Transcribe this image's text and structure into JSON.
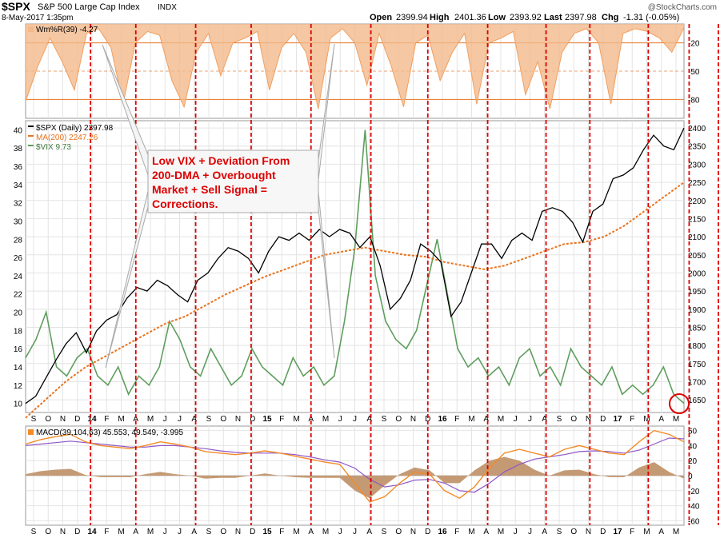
{
  "header": {
    "symbol": "$SPX",
    "name": "S&P 500 Large Cap Index",
    "exchange": "INDX",
    "date_time": "8-May-2017 1:35pm",
    "open_label": "Open",
    "open_value": "2399.94",
    "high_label": "High",
    "high_value": "2401.36",
    "low_label": "Low",
    "low_value": "2393.92",
    "last_label": "Last",
    "last_value": "2397.98",
    "chg_label": "Chg",
    "chg_value": "-1.31 (-0.05%)",
    "watermark": "@StockCharts.com"
  },
  "colors": {
    "spx": "#000000",
    "ma": "#e8731e",
    "vix": "#5e9e5e",
    "wm_fill": "#f3b98b",
    "wm_line": "#f0a060",
    "macd_line": "#f28c28",
    "signal_line": "#8f56c8",
    "hist": "#c49a74",
    "signal_vlines": "#dd0000",
    "annotation": "#dd0000",
    "grid": "#e4e4e4"
  },
  "annotation": {
    "lines": [
      "Low VIX + Deviation From",
      "200-DMA + Overbought",
      "Market + Sell Signal =",
      "Corrections."
    ]
  },
  "chart_data": [
    {
      "type": "line",
      "panel": "williams-percent-r",
      "legend": "Wm%R(39) -4.27",
      "y_ticks": [
        -20,
        -50,
        -80
      ],
      "ylim": [
        -100,
        0
      ],
      "values": [
        -82,
        -45,
        -15,
        -40,
        -70,
        -10,
        -5,
        -25,
        -85,
        -20,
        -8,
        -12,
        -60,
        -88,
        -30,
        -10,
        -55,
        -20,
        -15,
        -8,
        -70,
        -25,
        -10,
        -30,
        -90,
        -15,
        -5,
        -20,
        -65,
        -10,
        -45,
        -88,
        -20,
        -12,
        -60,
        -30,
        -10,
        -85,
        -20,
        -15,
        -8,
        -75,
        -40,
        -90,
        -30,
        -10,
        -5,
        -20,
        -85,
        -10,
        -5,
        -8,
        -15,
        -30,
        -4
      ]
    },
    {
      "type": "line",
      "panel": "price",
      "x_tick_labels": [
        "S",
        "O",
        "N",
        "D",
        "14",
        "F",
        "M",
        "A",
        "M",
        "J",
        "J",
        "A",
        "S",
        "O",
        "N",
        "D",
        "15",
        "F",
        "M",
        "A",
        "M",
        "J",
        "J",
        "A",
        "S",
        "O",
        "N",
        "D",
        "16",
        "F",
        "M",
        "A",
        "M",
        "J",
        "J",
        "A",
        "S",
        "O",
        "N",
        "D",
        "17",
        "F",
        "M",
        "A",
        "M"
      ],
      "right_axis_ticks": [
        2400,
        2350,
        2300,
        2250,
        2200,
        2150,
        2100,
        2050,
        2000,
        1950,
        1900,
        1850,
        1800,
        1750,
        1700,
        1650
      ],
      "left_axis_ticks": [
        40,
        38,
        36,
        34,
        32,
        30,
        28,
        26,
        24,
        22,
        20,
        18,
        16,
        14,
        12,
        10
      ],
      "series": [
        {
          "name": "$SPX (Daily) 2397.98",
          "axis": "right",
          "values": [
            1640,
            1660,
            1710,
            1760,
            1805,
            1835,
            1780,
            1840,
            1870,
            1885,
            1930,
            1960,
            1950,
            1980,
            1965,
            1940,
            1920,
            1980,
            2000,
            2040,
            2070,
            2060,
            2040,
            2000,
            2060,
            2100,
            2090,
            2110,
            2090,
            2120,
            2100,
            2120,
            2110,
            2070,
            2100,
            2020,
            1900,
            1930,
            1980,
            2080,
            2060,
            2030,
            1880,
            1920,
            2000,
            2080,
            2080,
            2040,
            2090,
            2110,
            2090,
            2170,
            2180,
            2170,
            2140,
            2085,
            2170,
            2190,
            2260,
            2270,
            2290,
            2340,
            2380,
            2350,
            2340,
            2400
          ]
        },
        {
          "name": "MA(200) 2247.26",
          "axis": "right",
          "values": [
            1600,
            1650,
            1700,
            1740,
            1770,
            1800,
            1830,
            1860,
            1880,
            1910,
            1940,
            1965,
            1990,
            2010,
            2030,
            2050,
            2060,
            2070,
            2060,
            2050,
            2045,
            2030,
            2020,
            2010,
            2020,
            2040,
            2060,
            2080,
            2085,
            2100,
            2130,
            2170,
            2210,
            2250
          ]
        },
        {
          "name": "$VIX 9.73",
          "axis": "left",
          "values": [
            15,
            17,
            20,
            14,
            13,
            15,
            16,
            13,
            12,
            14,
            11,
            13,
            12,
            14,
            19,
            17,
            14,
            13,
            16,
            14,
            12,
            13,
            16,
            14,
            13,
            12,
            15,
            13,
            14,
            12,
            13,
            19,
            27,
            40,
            24,
            19,
            17,
            16,
            18,
            23,
            28,
            22,
            16,
            14,
            15,
            13,
            14,
            12,
            15,
            16,
            13,
            14,
            12,
            16,
            14,
            13,
            12,
            14,
            11,
            12,
            11,
            12,
            14,
            11,
            10
          ]
        }
      ],
      "signal_lines_month_index": [
        3.9,
        7.0,
        11.1,
        14.9,
        19.0,
        23.1,
        27.0,
        31.1,
        35.1,
        38.1,
        42.1,
        44.9,
        46.9
      ]
    },
    {
      "type": "line",
      "panel": "macd",
      "legend": "MACD(39,104,63) 45.553, 49.549, -3.995",
      "y_ticks": [
        60,
        40,
        20,
        0,
        -20,
        -40,
        -60
      ],
      "ylim": [
        -60,
        60
      ],
      "x_tick_labels": [
        "S",
        "O",
        "N",
        "D",
        "14",
        "F",
        "M",
        "A",
        "M",
        "J",
        "J",
        "A",
        "S",
        "O",
        "N",
        "D",
        "15",
        "F",
        "M",
        "A",
        "M",
        "J",
        "J",
        "A",
        "S",
        "O",
        "N",
        "D",
        "16",
        "F",
        "M",
        "A",
        "M",
        "J",
        "J",
        "A",
        "S",
        "O",
        "N",
        "D",
        "17",
        "F",
        "M",
        "A",
        "M"
      ],
      "series": [
        {
          "name": "MACD",
          "values": [
            42,
            48,
            52,
            55,
            45,
            40,
            38,
            36,
            40,
            45,
            42,
            38,
            32,
            30,
            28,
            30,
            33,
            30,
            26,
            22,
            18,
            15,
            -10,
            -35,
            -28,
            -10,
            5,
            2,
            -20,
            -30,
            -15,
            10,
            30,
            35,
            30,
            25,
            35,
            40,
            35,
            30,
            28,
            45,
            60,
            55,
            45
          ]
        },
        {
          "name": "Signal",
          "values": [
            40,
            42,
            44,
            46,
            44,
            42,
            40,
            38,
            38,
            40,
            40,
            38,
            36,
            33,
            31,
            30,
            30,
            30,
            28,
            25,
            21,
            18,
            10,
            -5,
            -15,
            -12,
            -6,
            -5,
            -10,
            -20,
            -22,
            -10,
            5,
            15,
            22,
            25,
            28,
            32,
            33,
            32,
            30,
            34,
            42,
            50,
            49
          ]
        },
        {
          "name": "Histogram",
          "values": [
            2,
            6,
            8,
            9,
            1,
            -2,
            -2,
            -2,
            2,
            5,
            2,
            0,
            -4,
            -3,
            -3,
            0,
            3,
            0,
            -2,
            -3,
            -3,
            -3,
            -20,
            -30,
            -13,
            2,
            11,
            7,
            -10,
            -10,
            7,
            20,
            25,
            20,
            8,
            0,
            7,
            8,
            2,
            -2,
            -2,
            11,
            18,
            5,
            -4
          ]
        }
      ]
    }
  ]
}
